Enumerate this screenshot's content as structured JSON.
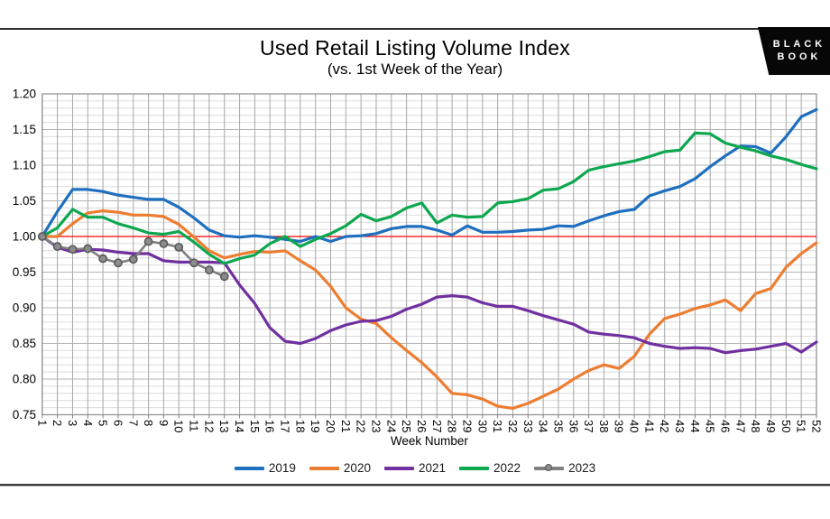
{
  "header": {
    "title": "Used Retail Listing Volume Index",
    "subtitle": "(vs. 1st Week of the Year)"
  },
  "logo": {
    "line1": "BLACK",
    "line2": "BOOK",
    "bg": "#070707",
    "fg": "#ffffff"
  },
  "chart_data": {
    "type": "line",
    "title": "Used Retail Listing Volume Index",
    "subtitle": "(vs. 1st Week of the Year)",
    "xlabel": "Week Number",
    "ylabel": "",
    "x_min": 1,
    "x_max": 52,
    "x_tick_step": 1,
    "ylim": [
      0.75,
      1.2
    ],
    "y_tick_step": 0.05,
    "y_minor_step": 0.01,
    "grid": true,
    "legend_position": "bottom",
    "reference_line": {
      "value": 1.0,
      "color": "#f40000"
    },
    "colors": {
      "grid_vertical": "#a6a6a6",
      "grid_major": "#b3b3b3",
      "grid_minor": "#dcdcdc",
      "plot_border": "#8c8c8c",
      "axis_text": "#000000",
      "tick": "#7f7f7f"
    },
    "series": [
      {
        "name": "2019",
        "color": "#1f6fbf",
        "marker": false,
        "values": [
          1.0,
          1.035,
          1.066,
          1.066,
          1.063,
          1.058,
          1.055,
          1.052,
          1.052,
          1.041,
          1.026,
          1.009,
          1.001,
          0.999,
          1.001,
          0.999,
          0.996,
          0.993,
          1.0,
          0.993,
          1.0,
          1.001,
          1.004,
          1.011,
          1.014,
          1.014,
          1.009,
          1.002,
          1.015,
          1.006,
          1.006,
          1.007,
          1.009,
          1.01,
          1.015,
          1.014,
          1.022,
          1.029,
          1.035,
          1.038,
          1.057,
          1.064,
          1.07,
          1.081,
          1.098,
          1.113,
          1.127,
          1.126,
          1.117,
          1.14,
          1.168,
          1.178
        ]
      },
      {
        "name": "2020",
        "color": "#ed7d31",
        "marker": false,
        "values": [
          1.0,
          1.0,
          1.018,
          1.033,
          1.036,
          1.034,
          1.03,
          1.03,
          1.028,
          1.017,
          0.999,
          0.98,
          0.97,
          0.975,
          0.979,
          0.978,
          0.98,
          0.966,
          0.953,
          0.93,
          0.9,
          0.884,
          0.878,
          0.858,
          0.84,
          0.823,
          0.803,
          0.78,
          0.778,
          0.772,
          0.762,
          0.759,
          0.766,
          0.776,
          0.786,
          0.8,
          0.812,
          0.82,
          0.815,
          0.832,
          0.863,
          0.885,
          0.891,
          0.899,
          0.904,
          0.911,
          0.896,
          0.92,
          0.927,
          0.957,
          0.976,
          0.991
        ]
      },
      {
        "name": "2021",
        "color": "#7030a0",
        "marker": false,
        "values": [
          1.0,
          0.985,
          0.978,
          0.982,
          0.981,
          0.978,
          0.976,
          0.976,
          0.966,
          0.964,
          0.964,
          0.964,
          0.963,
          0.932,
          0.906,
          0.872,
          0.853,
          0.85,
          0.857,
          0.868,
          0.876,
          0.881,
          0.882,
          0.888,
          0.898,
          0.905,
          0.915,
          0.917,
          0.915,
          0.907,
          0.902,
          0.902,
          0.896,
          0.889,
          0.883,
          0.877,
          0.866,
          0.863,
          0.861,
          0.858,
          0.85,
          0.846,
          0.843,
          0.844,
          0.843,
          0.837,
          0.84,
          0.842,
          0.846,
          0.85,
          0.838,
          0.852
        ]
      },
      {
        "name": "2022",
        "color": "#0da750",
        "marker": false,
        "values": [
          1.0,
          1.012,
          1.038,
          1.027,
          1.027,
          1.018,
          1.012,
          1.005,
          1.003,
          1.007,
          0.992,
          0.975,
          0.962,
          0.969,
          0.974,
          0.99,
          1.0,
          0.986,
          0.996,
          1.004,
          1.015,
          1.031,
          1.022,
          1.028,
          1.04,
          1.047,
          1.019,
          1.03,
          1.027,
          1.028,
          1.047,
          1.049,
          1.053,
          1.065,
          1.067,
          1.077,
          1.093,
          1.098,
          1.102,
          1.106,
          1.112,
          1.119,
          1.121,
          1.145,
          1.144,
          1.131,
          1.125,
          1.12,
          1.113,
          1.108,
          1.101,
          1.095
        ]
      },
      {
        "name": "2023",
        "color": "#808080",
        "marker": true,
        "marker_fill": "#8c8c8c",
        "marker_stroke": "#595959",
        "values": [
          1.0,
          0.986,
          0.982,
          0.983,
          0.969,
          0.963,
          0.968,
          0.993,
          0.99,
          0.985,
          0.963,
          0.953,
          0.944
        ]
      }
    ]
  }
}
